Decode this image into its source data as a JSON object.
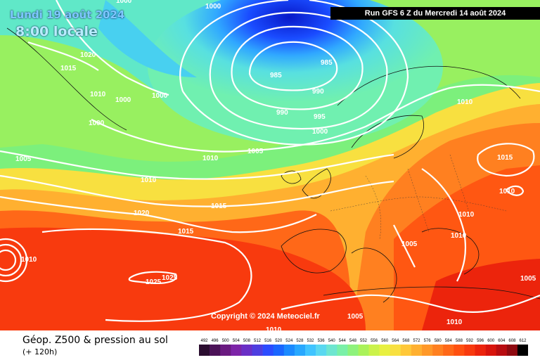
{
  "header": {
    "date": "Lundi 19 août 2024",
    "time": "8:00 locale",
    "run": "Run GFS 6 Z du Mercredi 14 août 2024"
  },
  "copyright": "Copyright © 2024 Meteociel.fr",
  "footer": {
    "title": "Géop. Z500 & pression au sol",
    "subtitle": "(+ 120h)"
  },
  "legend": {
    "values": [
      "492",
      "496",
      "500",
      "504",
      "508",
      "512",
      "516",
      "520",
      "524",
      "528",
      "532",
      "536",
      "540",
      "544",
      "548",
      "552",
      "556",
      "560",
      "564",
      "568",
      "572",
      "576",
      "580",
      "584",
      "588",
      "592",
      "596",
      "600",
      "604",
      "608",
      "612"
    ],
    "colors": [
      "#2a0d2f",
      "#4b1257",
      "#6a1a80",
      "#7d24a8",
      "#6a2fc6",
      "#4e3ee0",
      "#2c4cff",
      "#1a66ff",
      "#1b8aff",
      "#28a8ff",
      "#40c4ff",
      "#5ad8f0",
      "#6ee6d0",
      "#7af0a8",
      "#8ef27c",
      "#aaf25a",
      "#cbf24a",
      "#e8f040",
      "#f8e040",
      "#ffc838",
      "#ffb030",
      "#ff9828",
      "#ff8020",
      "#ff6818",
      "#ff5010",
      "#f83a0e",
      "#ec240c",
      "#d8140c",
      "#b80c10",
      "#8e0a10",
      "#000000"
    ]
  },
  "isobar_labels": [
    {
      "text": "1000"
    },
    {
      "text": "1000"
    },
    {
      "text": "1020"
    },
    {
      "text": "1015"
    },
    {
      "text": "1010"
    },
    {
      "text": "1000"
    },
    {
      "text": "1000"
    },
    {
      "text": "1000"
    },
    {
      "text": "985"
    },
    {
      "text": "985"
    },
    {
      "text": "990"
    },
    {
      "text": "990"
    },
    {
      "text": "995"
    },
    {
      "text": "1000"
    },
    {
      "text": "1010"
    },
    {
      "text": "1005"
    },
    {
      "text": "1010"
    },
    {
      "text": "1005"
    },
    {
      "text": "1010"
    },
    {
      "text": "1015"
    },
    {
      "text": "1010"
    },
    {
      "text": "1020"
    },
    {
      "text": "1015"
    },
    {
      "text": "1015"
    },
    {
      "text": "1010"
    },
    {
      "text": "1010"
    },
    {
      "text": "1005"
    },
    {
      "text": "1010"
    },
    {
      "text": "1025"
    },
    {
      "text": "1025"
    },
    {
      "text": "1005"
    },
    {
      "text": "1010"
    },
    {
      "text": "1005"
    },
    {
      "text": "1010"
    }
  ]
}
